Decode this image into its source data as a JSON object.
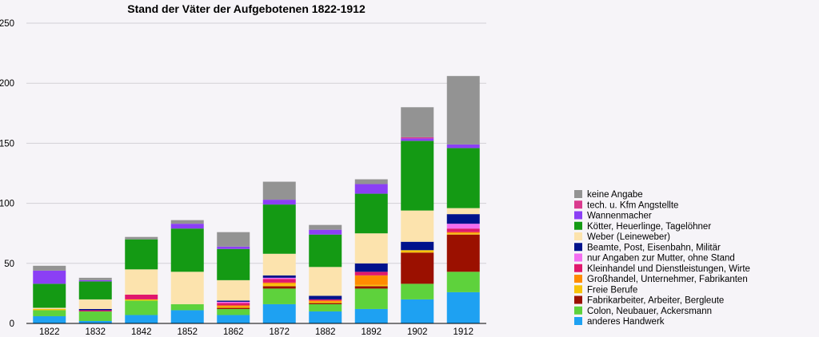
{
  "chart_data": {
    "type": "bar",
    "stacked": true,
    "title": "Stand der Väter der Aufgebotenen 1822-1912",
    "xlabel": "",
    "ylabel": "",
    "ylim": [
      0,
      250
    ],
    "yticks": [
      0,
      50,
      100,
      150,
      200,
      250
    ],
    "grid": true,
    "legend_position": "right",
    "categories": [
      "1822",
      "1832",
      "1842",
      "1852",
      "1862",
      "1872",
      "1882",
      "1892",
      "1902",
      "1912"
    ],
    "series": [
      {
        "name": "anderes Handwerk",
        "color": "#1ea1f2",
        "values": [
          6,
          2,
          7,
          11,
          7,
          16,
          10,
          12,
          20,
          26
        ]
      },
      {
        "name": "Colon, Neubauer, Ackersmann",
        "color": "#5ed23c",
        "values": [
          5,
          8,
          12,
          5,
          5,
          13,
          6,
          17,
          13,
          17
        ]
      },
      {
        "name": "Fabrikarbeiter, Arbeiter, Bergleute",
        "color": "#9b1000",
        "values": [
          0,
          0,
          0,
          0,
          1,
          2,
          1,
          2,
          26,
          31
        ]
      },
      {
        "name": "Freie Berufe",
        "color": "#f7c30a",
        "values": [
          1,
          0,
          1,
          0,
          1,
          2,
          1,
          1,
          2,
          1
        ]
      },
      {
        "name": "Großhandel, Unternehmer, Fabrikanten",
        "color": "#ff8c00",
        "values": [
          0,
          0,
          0,
          0,
          1,
          1,
          1,
          8,
          0,
          1
        ]
      },
      {
        "name": "Kleinhandel und Dienstleistungen, Wirte",
        "color": "#e0186c",
        "values": [
          0,
          1,
          4,
          0,
          2,
          3,
          1,
          3,
          0,
          3
        ]
      },
      {
        "name": "nur Angaben zur Mutter, ohne Stand",
        "color": "#f36df0",
        "values": [
          0,
          0,
          0,
          0,
          1,
          1,
          0,
          0,
          0,
          4
        ]
      },
      {
        "name": "Beamte, Post, Eisenbahn, Militär",
        "color": "#00128c",
        "values": [
          0,
          1,
          0,
          0,
          1,
          2,
          3,
          7,
          7,
          8
        ]
      },
      {
        "name": "Weber (Leineweber)",
        "color": "#fce3ad",
        "values": [
          1,
          8,
          21,
          27,
          17,
          18,
          24,
          25,
          26,
          5
        ]
      },
      {
        "name": "Kötter, Heuerlinge, Tagelöhner",
        "color": "#149a14",
        "values": [
          20,
          15,
          25,
          36,
          26,
          41,
          27,
          33,
          58,
          50
        ]
      },
      {
        "name": "Wannenmacher",
        "color": "#8b3ff5",
        "values": [
          11,
          1,
          0,
          4,
          2,
          4,
          4,
          8,
          2,
          3
        ]
      },
      {
        "name": "tech. u. Kfm Angstellte",
        "color": "#da3a8e",
        "values": [
          0,
          0,
          0,
          0,
          0,
          0,
          0,
          0,
          1,
          0
        ]
      },
      {
        "name": "keine Angabe",
        "color": "#939393",
        "values": [
          4,
          2,
          2,
          3,
          12,
          15,
          4,
          4,
          25,
          57
        ]
      }
    ]
  }
}
